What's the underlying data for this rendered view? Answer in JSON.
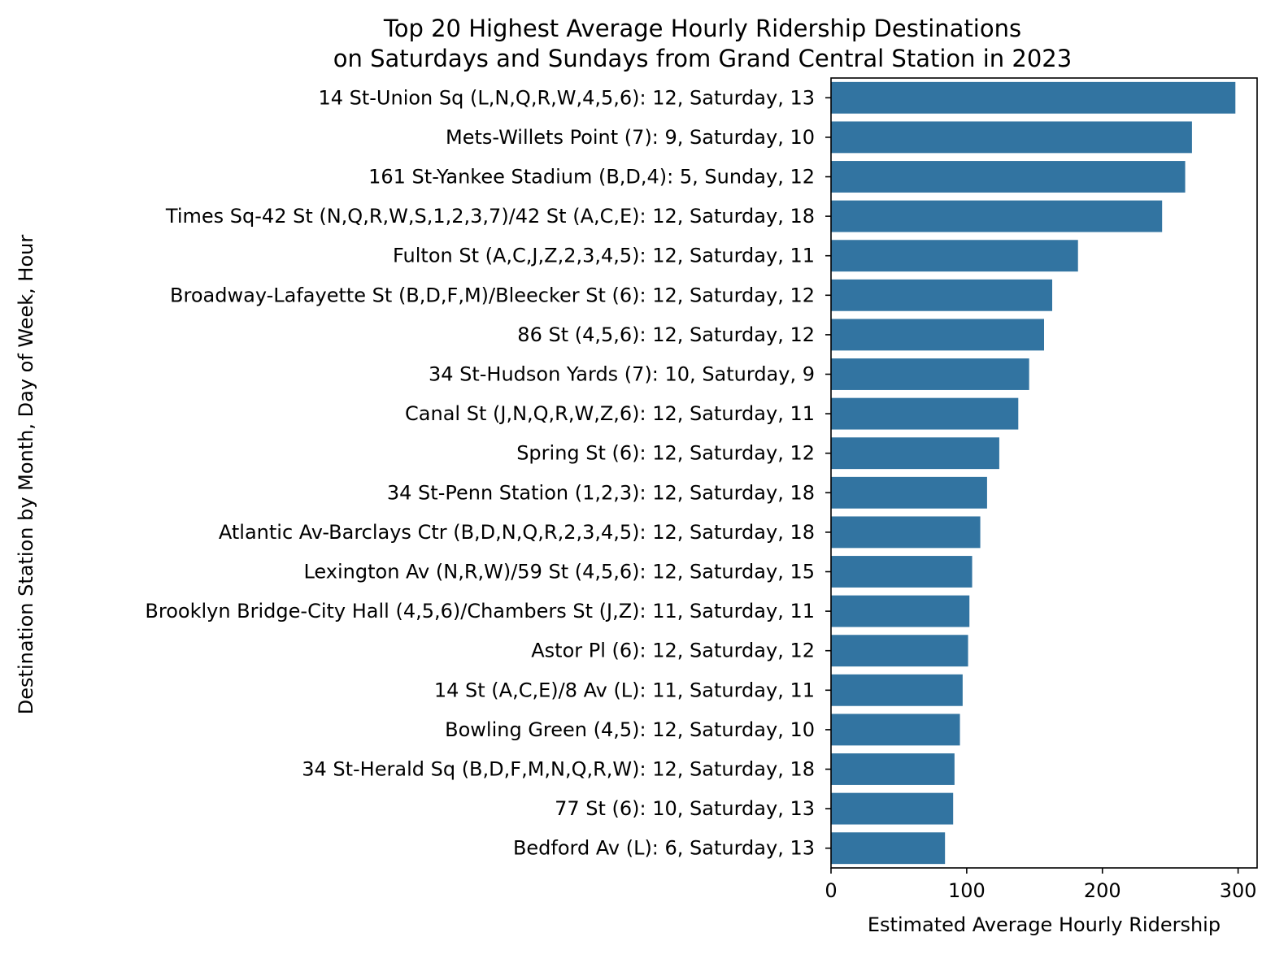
{
  "chart_data": {
    "type": "bar",
    "orientation": "horizontal",
    "title": "Top 20 Highest Average Hourly Ridership Destinations\non Saturdays and Sundays from Grand Central Station in 2023",
    "xlabel": "Estimated Average Hourly Ridership",
    "ylabel": "Destination Station by Month, Day of Week, Hour",
    "xlim": [
      0,
      314
    ],
    "xticks": [
      0,
      100,
      200,
      300
    ],
    "grid": false,
    "bar_color": "#3274a1",
    "categories": [
      "14 St-Union Sq (L,N,Q,R,W,4,5,6): 12, Saturday, 13",
      "Mets-Willets Point (7): 9, Saturday, 10",
      "161 St-Yankee Stadium (B,D,4): 5, Sunday, 12",
      "Times Sq-42 St (N,Q,R,W,S,1,2,3,7)/42 St (A,C,E): 12, Saturday, 18",
      "Fulton St (A,C,J,Z,2,3,4,5): 12, Saturday, 11",
      "Broadway-Lafayette St (B,D,F,M)/Bleecker St (6): 12, Saturday, 12",
      "86 St (4,5,6): 12, Saturday, 12",
      "34 St-Hudson Yards (7): 10, Saturday, 9",
      "Canal St (J,N,Q,R,W,Z,6): 12, Saturday, 11",
      "Spring St (6): 12, Saturday, 12",
      "34 St-Penn Station (1,2,3): 12, Saturday, 18",
      "Atlantic Av-Barclays Ctr (B,D,N,Q,R,2,3,4,5): 12, Saturday, 18",
      "Lexington Av (N,R,W)/59 St (4,5,6): 12, Saturday, 15",
      "Brooklyn Bridge-City Hall (4,5,6)/Chambers St (J,Z): 11, Saturday, 11",
      "Astor Pl (6): 12, Saturday, 12",
      "14 St (A,C,E)/8 Av (L): 11, Saturday, 11",
      "Bowling Green (4,5): 12, Saturday, 10",
      "34 St-Herald Sq (B,D,F,M,N,Q,R,W): 12, Saturday, 18",
      "77 St (6): 10, Saturday, 13",
      "Bedford Av (L): 6, Saturday, 13"
    ],
    "values": [
      298,
      266,
      261,
      244,
      182,
      163,
      157,
      146,
      138,
      124,
      115,
      110,
      104,
      102,
      101,
      97,
      95,
      91,
      90,
      84
    ]
  }
}
